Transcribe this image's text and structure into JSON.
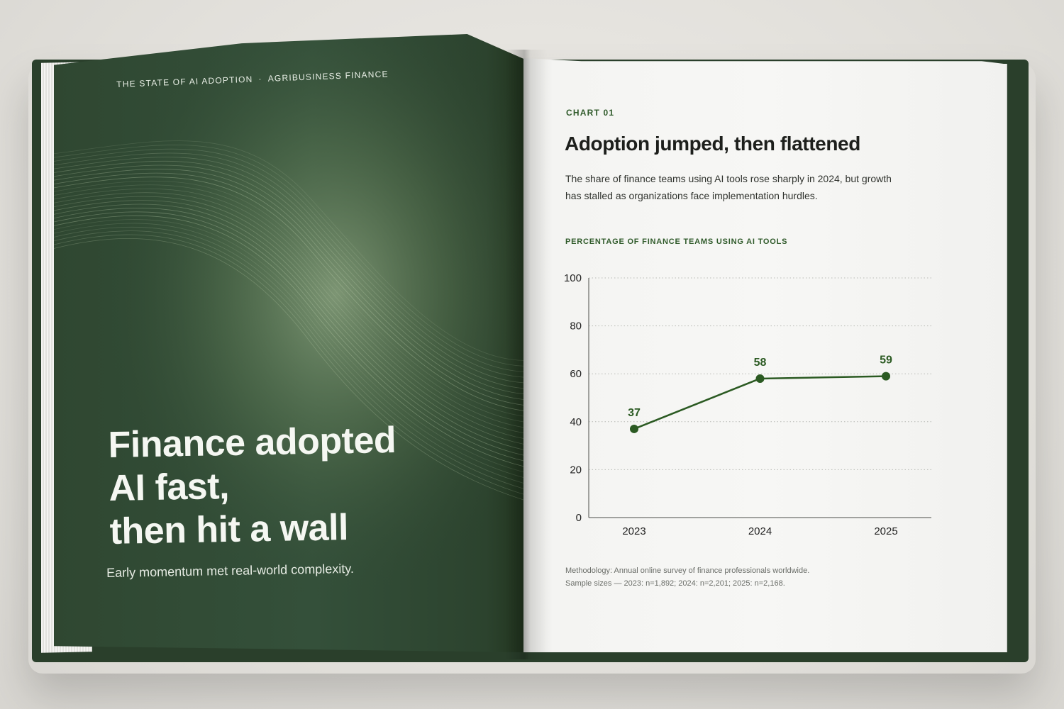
{
  "left_page": {
    "kicker_left": "THE STATE OF AI ADOPTION",
    "kicker_separator": "·",
    "kicker_right": "AGRIBUSINESS FINANCE",
    "headline_lines": [
      "Finance adopted",
      "AI fast,",
      "then hit a wall"
    ],
    "subhead": "Early momentum met real-world complexity."
  },
  "right_page": {
    "chart_label": "CHART 01",
    "title": "Adoption jumped, then flattened",
    "description": "The share of finance teams using AI tools rose sharply in 2024, but growth has stalled as organizations face implementation hurdles.",
    "series_label": "PERCENTAGE OF FINANCE TEAMS USING AI TOOLS",
    "methodology_lines": [
      "Methodology: Annual online survey of finance professionals worldwide.",
      "Sample sizes — 2023: n=1,892; 2024: n=2,201; 2025: n=2,168."
    ]
  },
  "colors": {
    "cover_green": "#2f4731",
    "accent_green": "#2f5a2a",
    "line_green": "#2b5a22",
    "page_white": "#f7f7f5"
  },
  "chart_data": {
    "type": "line",
    "title": "Adoption jumped, then flattened",
    "ylabel": "PERCENTAGE OF FINANCE TEAMS USING AI TOOLS",
    "xlabel": "",
    "x": [
      "2023",
      "2024",
      "2025"
    ],
    "values": [
      37,
      58,
      59
    ],
    "data_labels": [
      "37",
      "58",
      "59"
    ],
    "ylim": [
      0,
      100
    ],
    "yticks": [
      0,
      20,
      40,
      60,
      80,
      100
    ],
    "grid": "horizontal-dotted",
    "legend": "none"
  }
}
